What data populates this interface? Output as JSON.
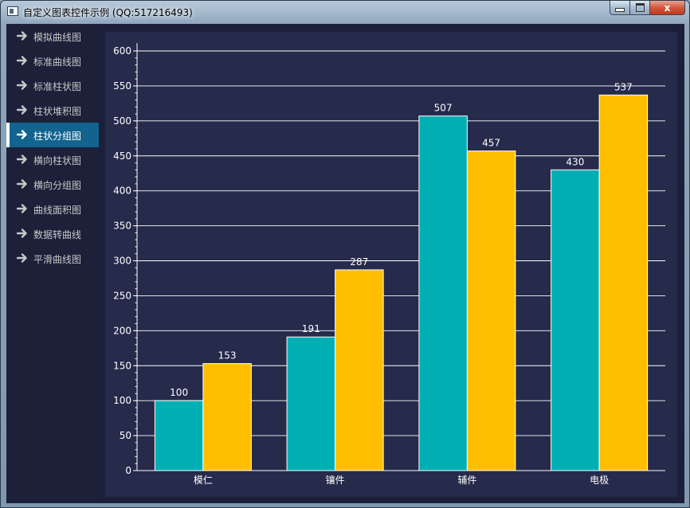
{
  "window": {
    "title": "自定义图表控件示例 (QQ:517216493)",
    "close_glyph": "x"
  },
  "sidebar": {
    "items": [
      {
        "label": "模拟曲线图",
        "active": false
      },
      {
        "label": "标准曲线图",
        "active": false
      },
      {
        "label": "标准柱状图",
        "active": false
      },
      {
        "label": "柱状堆积图",
        "active": false
      },
      {
        "label": "柱状分组图",
        "active": true
      },
      {
        "label": "横向柱状图",
        "active": false
      },
      {
        "label": "横向分组图",
        "active": false
      },
      {
        "label": "曲线面积图",
        "active": false
      },
      {
        "label": "数据转曲线",
        "active": false
      },
      {
        "label": "平滑曲线图",
        "active": false
      }
    ],
    "item_icon": "arrow-right-icon"
  },
  "colors": {
    "background": "#262a4b",
    "sidebar": "#1c2039",
    "active_item": "#12638e",
    "gridline": "#ffffff",
    "text": "#ffffff"
  },
  "chart_data": {
    "type": "bar",
    "categories": [
      "模仁",
      "镶件",
      "辅件",
      "电极"
    ],
    "series": [
      {
        "values": [
          100,
          191,
          507,
          430
        ],
        "color": "#00afb4"
      },
      {
        "values": [
          153,
          287,
          457,
          537
        ],
        "color": "#ffbf00"
      }
    ],
    "ylim": [
      0,
      600
    ],
    "yticks": [
      0,
      50,
      100,
      150,
      200,
      250,
      300,
      350,
      400,
      450,
      500,
      550,
      600
    ],
    "grid": true,
    "data_labels": true
  }
}
